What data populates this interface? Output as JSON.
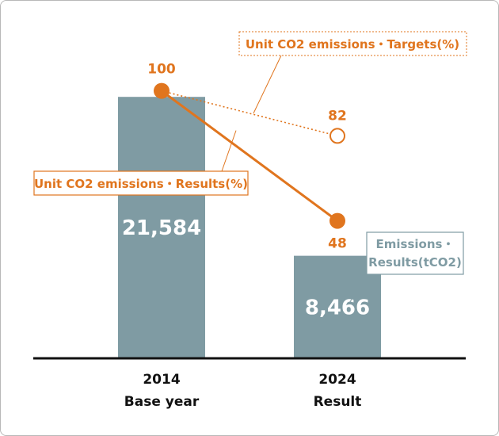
{
  "chart_data": {
    "type": "bar",
    "categories": [
      {
        "year": "2014",
        "label": "Base year"
      },
      {
        "year": "2024",
        "label": "Result"
      }
    ],
    "series": [
      {
        "name": "Emissions・Results(tCO2)",
        "legend_lines": [
          "Emissions・",
          "Results(tCO2)"
        ],
        "type": "bar",
        "values": [
          21584,
          8466
        ],
        "value_labels": [
          "21,584",
          "8,466"
        ],
        "color": "#7f9ba3"
      },
      {
        "name": "Unit CO2 emissions・Results(%)",
        "type": "line",
        "values": [
          100,
          48
        ],
        "value_labels": [
          "100",
          "48"
        ],
        "color": "#e0751e"
      },
      {
        "name": "Unit CO2 emissions・Targets(%)",
        "type": "line",
        "line_style": "dotted",
        "marker": "hollow-circle",
        "values": [
          100,
          82
        ],
        "value_labels": [
          "",
          "82"
        ],
        "color": "#e0751e"
      }
    ],
    "ylim_bar": [
      0,
      25000
    ],
    "ylim_line": [
      0,
      130
    ],
    "grid": false,
    "axis_color": "#111111",
    "label_color": "#111111"
  }
}
